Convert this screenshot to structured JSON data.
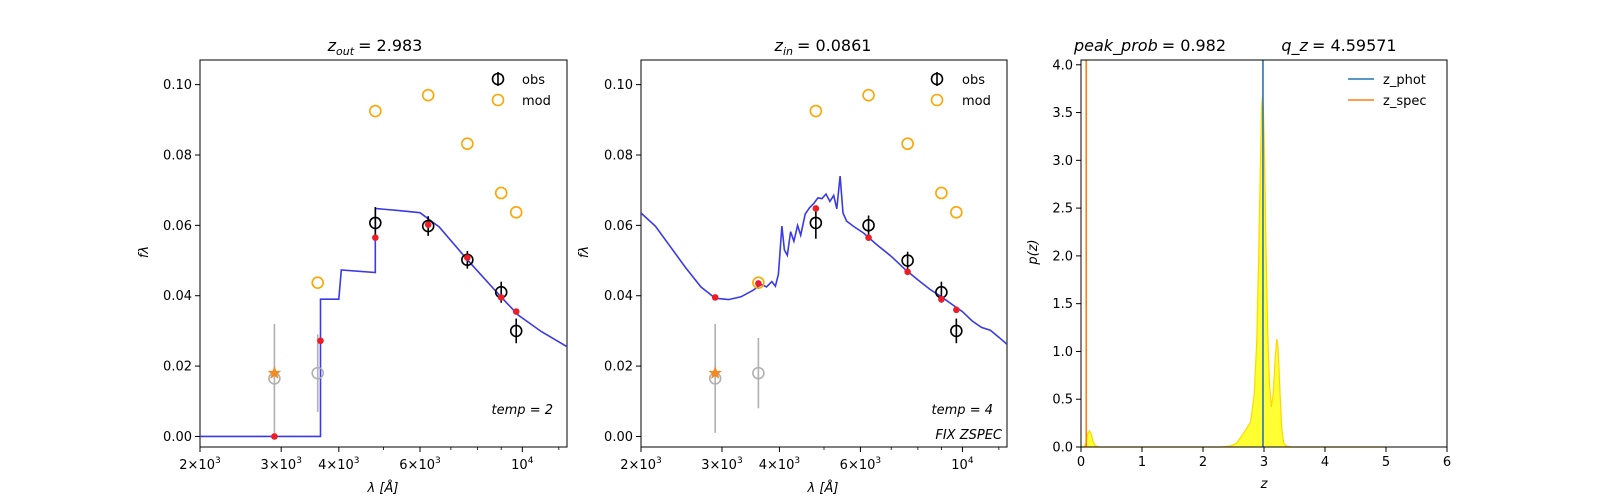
{
  "colors": {
    "obs": "#000000",
    "mod": "#ffa500",
    "gray": "#b0b0b0",
    "red": "#ee1c24",
    "star": "#f08a24",
    "sed": "#3a3ae8",
    "z_phot": "#1f77b4",
    "z_spec": "#ff7f0e",
    "fill": "#ffff33",
    "fill_edge": "#ffd700"
  },
  "chart_data": [
    {
      "type": "scatter",
      "title_var": "z",
      "title_sub": "out",
      "title_value": "= 2.983",
      "xlabel_prefix": "λ [",
      "xlabel_unit": "Å",
      "xlabel_suffix": "]",
      "ylabel": "fλ",
      "x_scale": "log",
      "xlim": [
        2000,
        12500
      ],
      "ylim": [
        -0.003,
        0.107
      ],
      "x_ticks": [
        {
          "value": 2000,
          "base": "2×10",
          "exp": "3"
        },
        {
          "value": 3000,
          "base": "3×10",
          "exp": "3"
        },
        {
          "value": 4000,
          "base": "4×10",
          "exp": "3"
        },
        {
          "value": 6000,
          "base": "6×10",
          "exp": "3"
        },
        {
          "value": 10000,
          "base": "10",
          "exp": "4"
        }
      ],
      "y_ticks": [
        "0.00",
        "0.02",
        "0.04",
        "0.06",
        "0.08",
        "0.10"
      ],
      "legend": {
        "position": "top-right",
        "entries": [
          "obs",
          "mod"
        ]
      },
      "annotation": [
        "temp = 2"
      ],
      "sed_line": [
        [
          2000,
          0
        ],
        [
          3650,
          0
        ],
        [
          3650,
          0.039
        ],
        [
          4000,
          0.039
        ],
        [
          4050,
          0.0473
        ],
        [
          4800,
          0.0466
        ],
        [
          4800,
          0.0648
        ],
        [
          5400,
          0.0642
        ],
        [
          6000,
          0.0636
        ],
        [
          6600,
          0.0596
        ],
        [
          7600,
          0.0502
        ],
        [
          9000,
          0.0396
        ],
        [
          9800,
          0.0345
        ],
        [
          11000,
          0.0298
        ],
        [
          12500,
          0.0255
        ]
      ],
      "obs": [
        {
          "x": 4800,
          "y": 0.0607,
          "err": 0.0045
        },
        {
          "x": 6250,
          "y": 0.0598,
          "err": 0.0028
        },
        {
          "x": 7600,
          "y": 0.0502,
          "err": 0.0025
        },
        {
          "x": 9000,
          "y": 0.041,
          "err": 0.003
        },
        {
          "x": 9700,
          "y": 0.03,
          "err": 0.0035
        }
      ],
      "obs_nondetect": [
        {
          "x": 2900,
          "y": 0.0165,
          "err": 0.0155
        },
        {
          "x": 3600,
          "y": 0.018,
          "err": 0.011
        }
      ],
      "mod": [
        {
          "x": 2900,
          "y": 0.018
        },
        {
          "x": 3600,
          "y": 0.0437
        },
        {
          "x": 4800,
          "y": 0.0925
        },
        {
          "x": 6250,
          "y": 0.097
        },
        {
          "x": 7600,
          "y": 0.0832
        },
        {
          "x": 9000,
          "y": 0.0692
        },
        {
          "x": 9700,
          "y": 0.0637
        }
      ],
      "mod_star_index": 0,
      "synth": [
        {
          "x": 2900,
          "y": 0.0
        },
        {
          "x": 3650,
          "y": 0.0272
        },
        {
          "x": 4800,
          "y": 0.0565
        },
        {
          "x": 6250,
          "y": 0.0602
        },
        {
          "x": 7600,
          "y": 0.0508
        },
        {
          "x": 9000,
          "y": 0.0395
        },
        {
          "x": 9700,
          "y": 0.0355
        }
      ]
    },
    {
      "type": "scatter",
      "title_var": "z",
      "title_sub": "in",
      "title_value": "= 0.0861",
      "xlabel_prefix": "λ [",
      "xlabel_unit": "Å",
      "xlabel_suffix": "]",
      "ylabel": "fλ",
      "x_scale": "log",
      "xlim": [
        2000,
        12500
      ],
      "ylim": [
        -0.003,
        0.107
      ],
      "x_ticks": [
        {
          "value": 2000,
          "base": "2×10",
          "exp": "3"
        },
        {
          "value": 3000,
          "base": "3×10",
          "exp": "3"
        },
        {
          "value": 4000,
          "base": "4×10",
          "exp": "3"
        },
        {
          "value": 6000,
          "base": "6×10",
          "exp": "3"
        },
        {
          "value": 10000,
          "base": "10",
          "exp": "4"
        }
      ],
      "y_ticks": [
        "0.00",
        "0.02",
        "0.04",
        "0.06",
        "0.08",
        "0.10"
      ],
      "legend": {
        "position": "top-right",
        "entries": [
          "obs",
          "mod"
        ]
      },
      "annotation": [
        "temp = 4",
        "FIX ZSPEC"
      ],
      "sed_line": [
        [
          2000,
          0.0635
        ],
        [
          2150,
          0.0598
        ],
        [
          2300,
          0.0545
        ],
        [
          2500,
          0.048
        ],
        [
          2700,
          0.0425
        ],
        [
          2900,
          0.0393
        ],
        [
          3100,
          0.0389
        ],
        [
          3300,
          0.0397
        ],
        [
          3500,
          0.0415
        ],
        [
          3650,
          0.0432
        ],
        [
          3750,
          0.0425
        ],
        [
          3850,
          0.044
        ],
        [
          3920,
          0.0427
        ],
        [
          3980,
          0.0461
        ],
        [
          4050,
          0.0598
        ],
        [
          4100,
          0.053
        ],
        [
          4160,
          0.0515
        ],
        [
          4230,
          0.0582
        ],
        [
          4300,
          0.0555
        ],
        [
          4380,
          0.06
        ],
        [
          4450,
          0.0572
        ],
        [
          4550,
          0.0632
        ],
        [
          4650,
          0.065
        ],
        [
          4750,
          0.0662
        ],
        [
          4850,
          0.0678
        ],
        [
          4950,
          0.0676
        ],
        [
          5050,
          0.0689
        ],
        [
          5150,
          0.0668
        ],
        [
          5250,
          0.0685
        ],
        [
          5330,
          0.0647
        ],
        [
          5420,
          0.074
        ],
        [
          5500,
          0.0635
        ],
        [
          5600,
          0.0612
        ],
        [
          5800,
          0.0597
        ],
        [
          6100,
          0.0578
        ],
        [
          6500,
          0.0546
        ],
        [
          7000,
          0.0512
        ],
        [
          7500,
          0.0475
        ],
        [
          8000,
          0.0445
        ],
        [
          8500,
          0.0418
        ],
        [
          9000,
          0.0397
        ],
        [
          9500,
          0.0375
        ],
        [
          10000,
          0.0355
        ],
        [
          10500,
          0.0328
        ],
        [
          11000,
          0.031
        ],
        [
          11500,
          0.0302
        ],
        [
          12000,
          0.0282
        ],
        [
          12500,
          0.0262
        ]
      ],
      "obs": [
        {
          "x": 4800,
          "y": 0.0607,
          "err": 0.0045
        },
        {
          "x": 6250,
          "y": 0.06,
          "err": 0.0028
        },
        {
          "x": 7600,
          "y": 0.05,
          "err": 0.0025
        },
        {
          "x": 9000,
          "y": 0.041,
          "err": 0.003
        },
        {
          "x": 9700,
          "y": 0.03,
          "err": 0.0035
        }
      ],
      "obs_nondetect": [
        {
          "x": 2900,
          "y": 0.0165,
          "err": 0.0155
        },
        {
          "x": 3600,
          "y": 0.018,
          "err": 0.01
        }
      ],
      "mod": [
        {
          "x": 2900,
          "y": 0.018
        },
        {
          "x": 3600,
          "y": 0.0437
        },
        {
          "x": 4800,
          "y": 0.0925
        },
        {
          "x": 6250,
          "y": 0.097
        },
        {
          "x": 7600,
          "y": 0.0832
        },
        {
          "x": 9000,
          "y": 0.0692
        },
        {
          "x": 9700,
          "y": 0.0637
        }
      ],
      "mod_star_index": 0,
      "synth": [
        {
          "x": 2900,
          "y": 0.0395
        },
        {
          "x": 3600,
          "y": 0.0435
        },
        {
          "x": 4800,
          "y": 0.0648
        },
        {
          "x": 6250,
          "y": 0.0565
        },
        {
          "x": 7600,
          "y": 0.0468
        },
        {
          "x": 9000,
          "y": 0.039
        },
        {
          "x": 9700,
          "y": 0.036
        }
      ]
    },
    {
      "type": "area",
      "title_left_var": "peak_prob",
      "title_left_value": "= 0.982",
      "title_right_var": "q_z",
      "title_right_value": "= 4.59571",
      "xlabel": "z",
      "ylabel": "p(z)",
      "xlim": [
        0,
        6
      ],
      "ylim": [
        0,
        4.05
      ],
      "x_ticks": [
        "0",
        "1",
        "2",
        "3",
        "4",
        "5",
        "6"
      ],
      "y_ticks": [
        "0.0",
        "0.5",
        "1.0",
        "1.5",
        "2.0",
        "2.5",
        "3.0",
        "3.5",
        "4.0"
      ],
      "legend": {
        "position": "top-right",
        "entries": [
          "z_phot",
          "z_spec"
        ]
      },
      "z_phot": 2.983,
      "z_spec": 0.0861,
      "pdf": [
        [
          0,
          0
        ],
        [
          0.05,
          0
        ],
        [
          0.08,
          0.04
        ],
        [
          0.11,
          0.14
        ],
        [
          0.14,
          0.17
        ],
        [
          0.17,
          0.13
        ],
        [
          0.2,
          0.05
        ],
        [
          0.24,
          0.01
        ],
        [
          0.3,
          0
        ],
        [
          2.3,
          0
        ],
        [
          2.45,
          0.01
        ],
        [
          2.55,
          0.04
        ],
        [
          2.65,
          0.13
        ],
        [
          2.72,
          0.2
        ],
        [
          2.78,
          0.26
        ],
        [
          2.84,
          0.55
        ],
        [
          2.88,
          1.1
        ],
        [
          2.91,
          1.9
        ],
        [
          2.94,
          2.9
        ],
        [
          2.96,
          3.55
        ],
        [
          2.975,
          3.67
        ],
        [
          2.99,
          3.55
        ],
        [
          3.01,
          3.0
        ],
        [
          3.03,
          2.2
        ],
        [
          3.06,
          1.2
        ],
        [
          3.09,
          0.65
        ],
        [
          3.12,
          0.42
        ],
        [
          3.15,
          0.55
        ],
        [
          3.18,
          0.9
        ],
        [
          3.21,
          1.13
        ],
        [
          3.23,
          1.05
        ],
        [
          3.26,
          0.6
        ],
        [
          3.29,
          0.2
        ],
        [
          3.32,
          0.05
        ],
        [
          3.36,
          0.01
        ],
        [
          3.45,
          0
        ],
        [
          5.0,
          0
        ]
      ]
    }
  ]
}
